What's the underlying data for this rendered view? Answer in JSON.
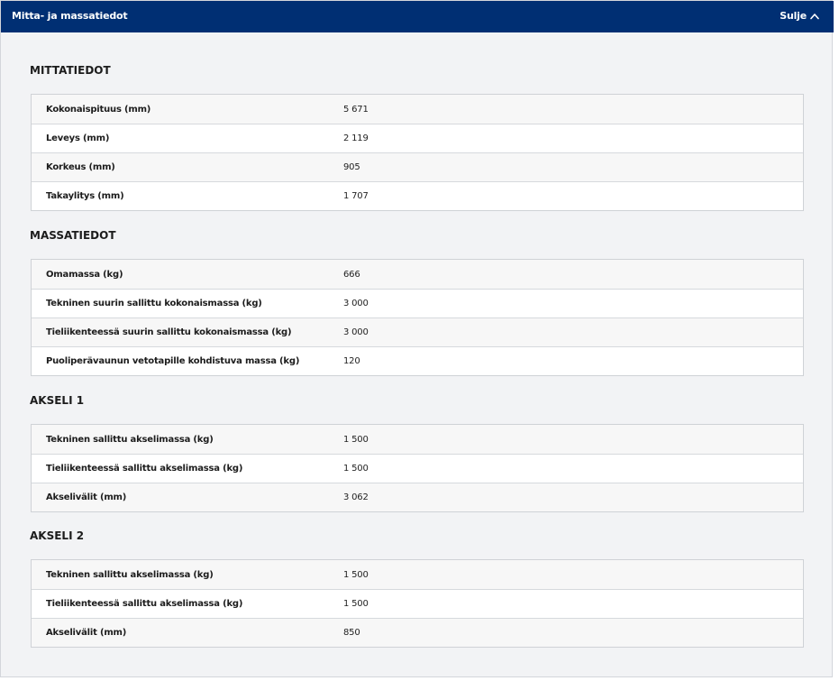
{
  "header": {
    "title": "Mitta- ja massatiedot",
    "close_label": "Sulje",
    "close_icon": "chevron-up-icon",
    "background_color": "#002f73"
  },
  "sections": [
    {
      "heading": "MITTATIEDOT",
      "rows": [
        {
          "label": "Kokonaispituus (mm)",
          "value": "5 671"
        },
        {
          "label": "Leveys (mm)",
          "value": "2 119"
        },
        {
          "label": "Korkeus (mm)",
          "value": "905"
        },
        {
          "label": "Takaylitys (mm)",
          "value": "1 707"
        }
      ]
    },
    {
      "heading": "MASSATIEDOT",
      "rows": [
        {
          "label": "Omamassa (kg)",
          "value": "666"
        },
        {
          "label": "Tekninen suurin sallittu kokonaismassa (kg)",
          "value": "3 000"
        },
        {
          "label": "Tieliikenteessä suurin sallittu kokonaismassa (kg)",
          "value": "3 000"
        },
        {
          "label": "Puoliperävaunun vetotapille kohdistuva massa (kg)",
          "value": "120"
        }
      ]
    },
    {
      "heading": "AKSELI 1",
      "rows": [
        {
          "label": "Tekninen sallittu akselimassa (kg)",
          "value": "1 500"
        },
        {
          "label": "Tieliikenteessä sallittu akselimassa (kg)",
          "value": "1 500"
        },
        {
          "label": "Akselivälit (mm)",
          "value": "3 062"
        }
      ]
    },
    {
      "heading": "AKSELI 2",
      "rows": [
        {
          "label": "Tekninen sallittu akselimassa (kg)",
          "value": "1 500"
        },
        {
          "label": "Tieliikenteessä sallittu akselimassa (kg)",
          "value": "1 500"
        },
        {
          "label": "Akselivälit (mm)",
          "value": "850"
        }
      ]
    }
  ]
}
